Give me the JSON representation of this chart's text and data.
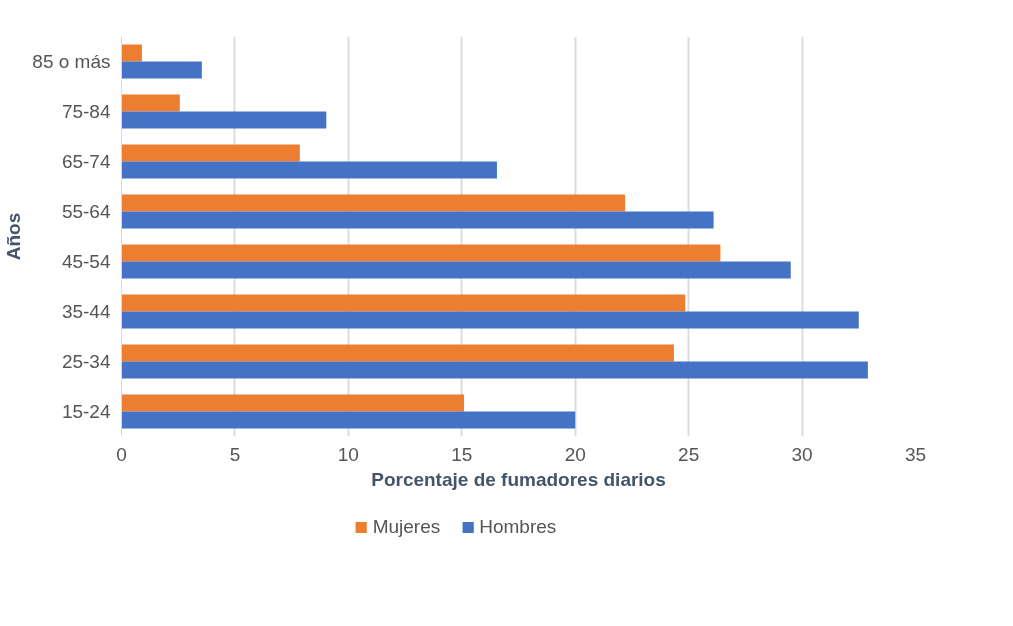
{
  "chart_data": {
    "type": "bar",
    "orientation": "horizontal",
    "xlabel": "Porcentaje de fumadores diarios",
    "ylabel": "Años",
    "categories": [
      "85 o más",
      "75-84",
      "65-74",
      "55-64",
      "45-54",
      "35-44",
      "25-34",
      "15-24"
    ],
    "series": [
      {
        "name": "Mujeres",
        "color": "#ed7d31",
        "values": [
          0.9,
          2.57,
          7.86,
          22.2,
          26.4,
          24.85,
          24.35,
          15.1
        ]
      },
      {
        "name": "Hombres",
        "color": "#4472c4",
        "values": [
          3.54,
          9.03,
          16.55,
          26.1,
          29.5,
          32.5,
          32.9,
          20.0
        ]
      }
    ],
    "xlim": [
      0,
      35
    ],
    "xticks": [
      0,
      5,
      10,
      15,
      20,
      25,
      30,
      35
    ],
    "grid": "x",
    "legend": "bottom"
  }
}
